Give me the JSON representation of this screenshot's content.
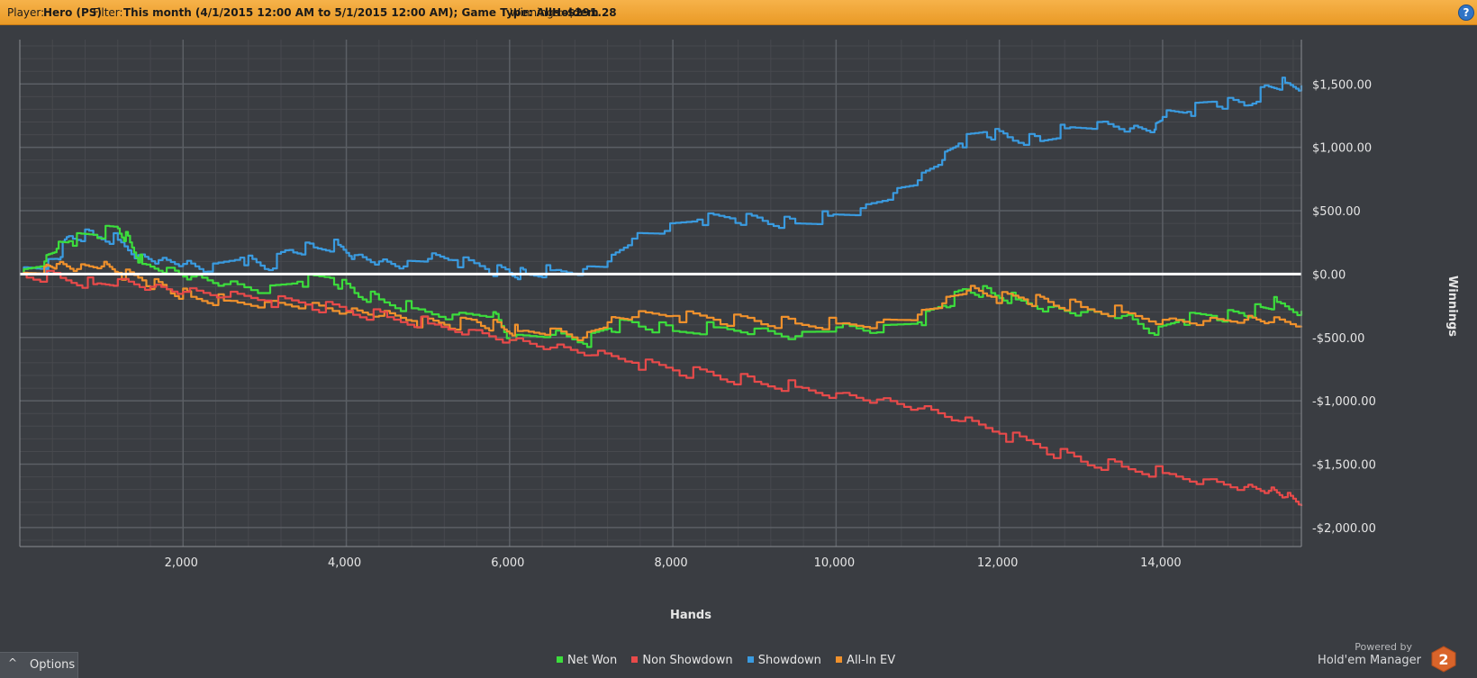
{
  "header": {
    "player_label": "Player:",
    "player_value": "Hero (PS)",
    "filter_label": "Filter:",
    "filter_value": "This month (4/1/2015 12:00 AM to 5/1/2015 12:00 AM); Game Type: AllHoldem",
    "winnings_label": "Winnings:",
    "winnings_value": "-$291.28",
    "help_glyph": "?"
  },
  "options": {
    "chevron": "^",
    "label": "Options"
  },
  "legend": [
    {
      "label": "Net Won",
      "color": "#3cdd3c"
    },
    {
      "label": "Non Showdown",
      "color": "#e84a4a"
    },
    {
      "label": "Showdown",
      "color": "#3a9be0"
    },
    {
      "label": "All-In EV",
      "color": "#f0912c"
    }
  ],
  "branding": {
    "powered_by": "Powered by",
    "product": "Hold'em Manager",
    "logo_digit": "2"
  },
  "chart_data": {
    "type": "line",
    "xlabel": "Hands",
    "ylabel": "Winnings",
    "xlim": [
      0,
      15700
    ],
    "ylim": [
      -2150,
      1850
    ],
    "x_ticks": [
      2000,
      4000,
      6000,
      8000,
      10000,
      12000,
      14000
    ],
    "x_tick_labels": [
      "2,000",
      "4,000",
      "6,000",
      "8,000",
      "10,000",
      "12,000",
      "14,000"
    ],
    "y_ticks": [
      1500,
      1000,
      500,
      0,
      -500,
      -1000,
      -1500,
      -2000
    ],
    "y_tick_labels": [
      "$1,500.00",
      "$1,000.00",
      "$500.00",
      "$0.00",
      "-$500.00",
      "-$1,000.00",
      "-$1,500.00",
      "-$2,000.00"
    ],
    "grid": true,
    "legend_position": "bottom-center",
    "colors": {
      "background": "#3a3d42",
      "grid_major": "#5b5f65",
      "grid_minor": "#47494e",
      "zero_line": "#ffffff"
    },
    "series": [
      {
        "name": "Showdown",
        "color": "#3a9be0",
        "x": [
          0,
          300,
          450,
          600,
          900,
          1200,
          1450,
          1700,
          2000,
          2300,
          2700,
          3000,
          3300,
          3600,
          3900,
          4100,
          4400,
          4700,
          5000,
          5300,
          5700,
          6000,
          6200,
          6500,
          6900,
          7200,
          7500,
          7900,
          8300,
          8700,
          9100,
          9500,
          9900,
          10300,
          10700,
          11000,
          11300,
          11500,
          11800,
          12100,
          12500,
          12800,
          13200,
          13600,
          13900,
          14000,
          14300,
          14600,
          15000,
          15300,
          15500,
          15700
        ],
        "y": [
          0,
          50,
          120,
          300,
          310,
          270,
          150,
          110,
          80,
          20,
          130,
          40,
          190,
          210,
          230,
          150,
          100,
          60,
          120,
          110,
          40,
          10,
          0,
          30,
          40,
          100,
          280,
          340,
          430,
          440,
          420,
          400,
          460,
          520,
          640,
          740,
          900,
          1030,
          1120,
          1080,
          1050,
          1150,
          1200,
          1150,
          1140,
          1240,
          1280,
          1360,
          1330,
          1480,
          1510,
          1490
        ]
      },
      {
        "name": "Net Won",
        "color": "#3cdd3c",
        "x": [
          0,
          300,
          450,
          600,
          900,
          1200,
          1350,
          1500,
          1800,
          2100,
          2500,
          3000,
          3400,
          3800,
          4100,
          4400,
          4800,
          5300,
          5800,
          6000,
          6500,
          6900,
          7200,
          7500,
          8000,
          8500,
          9000,
          9500,
          10000,
          10500,
          11000,
          11300,
          11600,
          11900,
          12200,
          12600,
          13000,
          13500,
          13900,
          14200,
          14600,
          15000,
          15200,
          15400,
          15700
        ],
        "y": [
          0,
          100,
          200,
          260,
          310,
          360,
          250,
          80,
          50,
          -20,
          -80,
          -150,
          -60,
          -30,
          -150,
          -200,
          -270,
          -320,
          -300,
          -520,
          -480,
          -550,
          -430,
          -380,
          -450,
          -420,
          -430,
          -490,
          -420,
          -460,
          -380,
          -250,
          -120,
          -150,
          -200,
          -260,
          -300,
          -330,
          -480,
          -360,
          -330,
          -330,
          -260,
          -220,
          -290
        ]
      },
      {
        "name": "All-In EV",
        "color": "#f0912c",
        "x": [
          0,
          300,
          450,
          700,
          1000,
          1200,
          1500,
          1800,
          2100,
          2500,
          3000,
          3500,
          4000,
          4400,
          4800,
          5200,
          5600,
          5900,
          6100,
          6500,
          6900,
          7200,
          7500,
          8000,
          8500,
          9000,
          9500,
          10000,
          10500,
          11000,
          11300,
          11600,
          11900,
          12300,
          12600,
          13000,
          13500,
          14000,
          14500,
          15000,
          15300,
          15700
        ],
        "y": [
          0,
          60,
          80,
          40,
          60,
          10,
          -50,
          -120,
          -180,
          -210,
          -220,
          -240,
          -300,
          -330,
          -370,
          -400,
          -380,
          -420,
          -450,
          -430,
          -500,
          -380,
          -340,
          -330,
          -360,
          -370,
          -390,
          -390,
          -380,
          -320,
          -230,
          -130,
          -180,
          -200,
          -220,
          -260,
          -300,
          -360,
          -370,
          -360,
          -380,
          -420
        ]
      },
      {
        "name": "Non Showdown",
        "color": "#e84a4a",
        "x": [
          0,
          500,
          900,
          1200,
          1600,
          2000,
          2500,
          3000,
          3500,
          4000,
          4500,
          5000,
          5500,
          6000,
          6500,
          7000,
          7500,
          8000,
          8500,
          9000,
          9500,
          10000,
          10500,
          11000,
          11500,
          12000,
          12500,
          13000,
          13500,
          14000,
          14500,
          15000,
          15300,
          15500,
          15700
        ],
        "y": [
          0,
          -30,
          -80,
          -40,
          -100,
          -140,
          -180,
          -210,
          -240,
          -290,
          -340,
          -390,
          -440,
          -520,
          -580,
          -640,
          -700,
          -760,
          -800,
          -850,
          -890,
          -940,
          -990,
          -1060,
          -1160,
          -1260,
          -1370,
          -1480,
          -1520,
          -1570,
          -1620,
          -1680,
          -1710,
          -1760,
          -1830
        ]
      }
    ]
  }
}
